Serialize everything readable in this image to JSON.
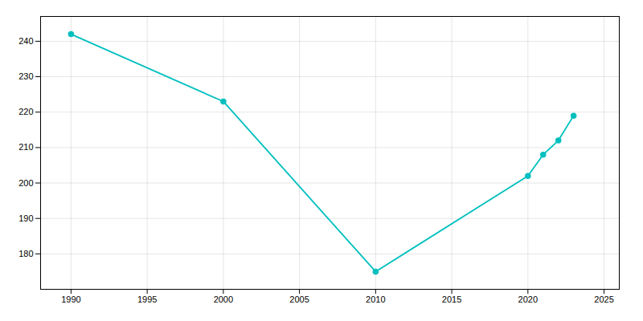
{
  "chart_data": {
    "type": "line",
    "x": [
      1990,
      2000,
      2010,
      2020,
      2021,
      2022,
      2023
    ],
    "values": [
      242,
      223,
      175,
      202,
      208,
      212,
      219
    ],
    "color": "#00BFBF",
    "marker": "circle",
    "xlim": [
      1988,
      2026
    ],
    "ylim": [
      170,
      247
    ],
    "xticks": [
      1990,
      1995,
      2000,
      2005,
      2010,
      2015,
      2020,
      2025
    ],
    "yticks": [
      180,
      190,
      200,
      210,
      220,
      230,
      240
    ],
    "grid": true
  }
}
